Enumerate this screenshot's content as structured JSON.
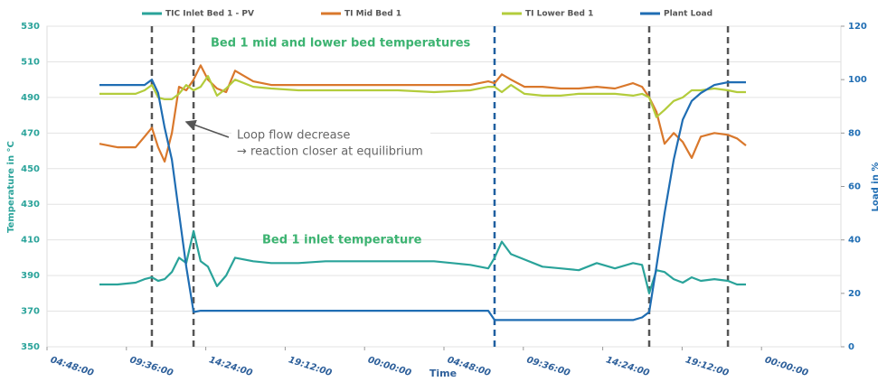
{
  "chart_data": {
    "type": "line",
    "legend": "top",
    "grid": true,
    "x_label": "Time",
    "y_label": "Temperature in °C",
    "y2_label": "Load in %",
    "xlim": [
      0,
      48
    ],
    "xticks": [
      {
        "value": 0,
        "label": "04:48:00"
      },
      {
        "value": 4.8,
        "label": "09:36:00"
      },
      {
        "value": 9.6,
        "label": "14:24:00"
      },
      {
        "value": 14.4,
        "label": "19:12:00"
      },
      {
        "value": 19.2,
        "label": "00:00:00"
      },
      {
        "value": 24,
        "label": "04:48:00"
      },
      {
        "value": 28.8,
        "label": "09:36:00"
      },
      {
        "value": 33.6,
        "label": "14:24:00"
      },
      {
        "value": 38.4,
        "label": "19:12:00"
      },
      {
        "value": 43.2,
        "label": "00:00:00"
      }
    ],
    "ylim": [
      350,
      530
    ],
    "yticks": [
      350,
      370,
      390,
      410,
      430,
      450,
      470,
      490,
      510,
      530
    ],
    "y2lim": [
      0,
      120
    ],
    "y2ticks": [
      0,
      20,
      40,
      60,
      80,
      100,
      120
    ],
    "x": [
      3.17,
      4.26,
      5.36,
      5.9,
      6.34,
      6.72,
      7.11,
      7.55,
      7.98,
      8.42,
      8.86,
      9.29,
      9.73,
      10.28,
      10.83,
      11.37,
      12.47,
      13.56,
      15.2,
      16.84,
      19.03,
      21.21,
      23.4,
      25.59,
      26.68,
      27.06,
      27.5,
      28.05,
      28.87,
      29.96,
      31.06,
      32.15,
      33.24,
      34.34,
      35.43,
      35.98,
      36.41,
      36.85,
      37.34,
      37.89,
      38.44,
      38.98,
      39.53,
      40.35,
      41.17,
      41.72,
      42.26
    ],
    "series": [
      {
        "name": "TIC Inlet Bed 1 - PV",
        "color": "#2aa39a",
        "axis": "y",
        "values": [
          385,
          385,
          386,
          388,
          389,
          387,
          388,
          392,
          400,
          397,
          415,
          398,
          395,
          384,
          390,
          400,
          398,
          397,
          397,
          398,
          398,
          398,
          398,
          396,
          394,
          400,
          409,
          402,
          399,
          395,
          394,
          393,
          397,
          394,
          397,
          396,
          380,
          393,
          392,
          388,
          386,
          389,
          387,
          388,
          387,
          385,
          385
        ]
      },
      {
        "name": "TI Mid Bed 1",
        "color": "#d9782c",
        "axis": "y",
        "values": [
          464,
          462,
          462,
          468,
          473,
          462,
          454,
          470,
          496,
          494,
          500,
          508,
          500,
          495,
          493,
          505,
          499,
          497,
          497,
          497,
          497,
          497,
          497,
          497,
          499,
          498,
          503,
          500,
          496,
          496,
          495,
          495,
          496,
          495,
          498,
          496,
          490,
          482,
          464,
          470,
          465,
          456,
          468,
          470,
          469,
          467,
          463
        ]
      },
      {
        "name": "TI Lower Bed 1",
        "color": "#b3cc3c",
        "axis": "y",
        "values": [
          492,
          492,
          492,
          494,
          497,
          490,
          489,
          489,
          492,
          497,
          494,
          496,
          502,
          491,
          495,
          500,
          496,
          495,
          494,
          494,
          494,
          494,
          493,
          494,
          496,
          496,
          493,
          497,
          492,
          491,
          491,
          492,
          492,
          492,
          491,
          492,
          490,
          479,
          483,
          488,
          490,
          494,
          494,
          495,
          494,
          493,
          493
        ]
      },
      {
        "name": "Plant Load",
        "color": "#1f6db3",
        "axis": "y2",
        "values": [
          98,
          98,
          98,
          98,
          100,
          95,
          82,
          70,
          50,
          30,
          13,
          13.5,
          13.5,
          13.5,
          13.5,
          13.5,
          13.5,
          13.5,
          13.5,
          13.5,
          13.5,
          13.5,
          13.5,
          13.5,
          13.5,
          10,
          10,
          10,
          10,
          10,
          10,
          10,
          10,
          10,
          10,
          11,
          13,
          30,
          50,
          70,
          85,
          92,
          95,
          98,
          99,
          99,
          99
        ]
      }
    ],
    "event_lines": [
      {
        "x": 6.34,
        "color": "#555555"
      },
      {
        "x": 8.86,
        "color": "#555555"
      },
      {
        "x": 27.06,
        "color": "#1f5fa0"
      },
      {
        "x": 36.41,
        "color": "#555555"
      },
      {
        "x": 41.17,
        "color": "#555555"
      }
    ],
    "annotations": [
      {
        "text": "Bed 1 mid and lower bed temperatures"
      },
      {
        "text": "Loop flow decrease"
      },
      {
        "text": "→ reaction closer at equilibrium"
      },
      {
        "text": "Bed 1 inlet temperature"
      }
    ]
  }
}
